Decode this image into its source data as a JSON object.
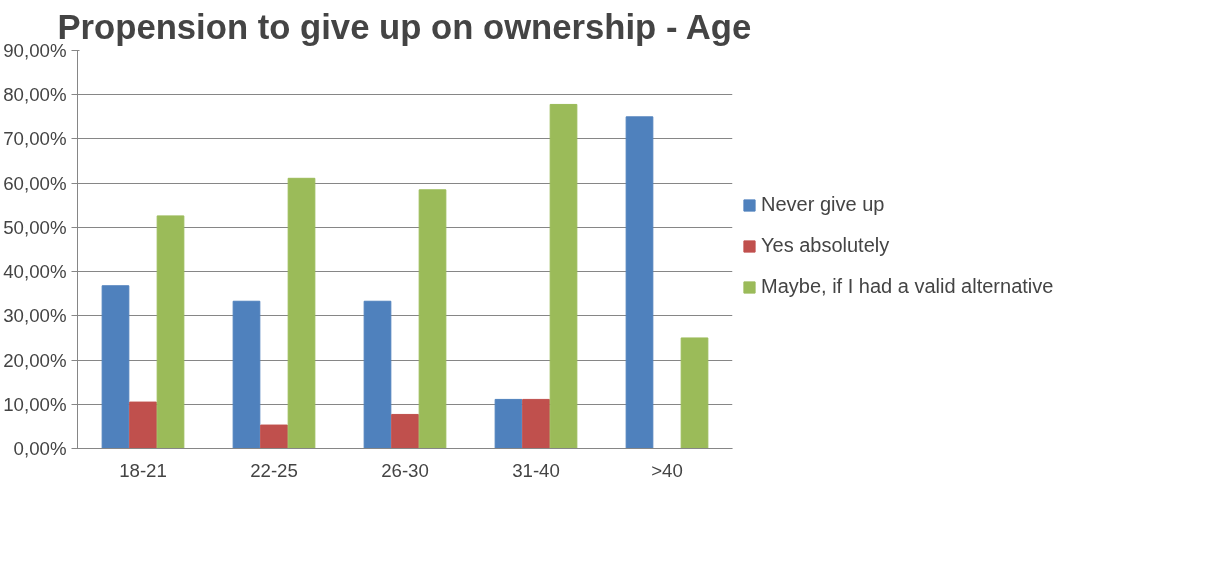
{
  "chart_data": {
    "type": "bar",
    "title": "Propension to give up on ownership - Age",
    "categories": [
      "18-21",
      "22-25",
      "26-30",
      "31-40",
      ">40"
    ],
    "series": [
      {
        "name": "Never give up",
        "color": "#4f81bd",
        "values": [
          36.8,
          33.3,
          33.3,
          11.1,
          75
        ]
      },
      {
        "name": "Yes absolutely",
        "color": "#c0504d",
        "values": [
          10.5,
          5.3,
          7.7,
          11.1,
          0
        ]
      },
      {
        "name": "Maybe, if I had a valid alternative",
        "color": "#9bbb59",
        "values": [
          52.6,
          61.1,
          58.5,
          77.8,
          25
        ]
      }
    ],
    "ylim": [
      0,
      90
    ],
    "yticks": [
      {
        "value": 0,
        "label": "0,00%"
      },
      {
        "value": 10,
        "label": "10,00%"
      },
      {
        "value": 20,
        "label": "20,00%"
      },
      {
        "value": 30,
        "label": "30,00%"
      },
      {
        "value": 40,
        "label": "40,00%"
      },
      {
        "value": 50,
        "label": "50,00%"
      },
      {
        "value": 60,
        "label": "60,00%"
      },
      {
        "value": 70,
        "label": "70,00%"
      },
      {
        "value": 80,
        "label": "80,00%"
      },
      {
        "value": 90,
        "label": "90,00%"
      }
    ],
    "grid": "y",
    "legend": "right"
  }
}
